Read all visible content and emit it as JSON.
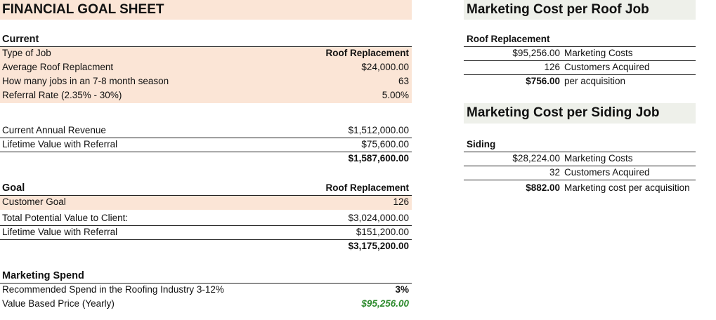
{
  "left": {
    "title": "FINANCIAL GOAL SHEET",
    "current": {
      "heading": "Current",
      "rows": [
        {
          "label": "Type of Job",
          "value": "Roof Replacement"
        },
        {
          "label": "Average Roof Replacment",
          "value": "$24,000.00"
        },
        {
          "label": "How many jobs in an 7-8 month season",
          "value": "63"
        },
        {
          "label": "Referral Rate (2.35% - 30%)",
          "value": "5.00%"
        }
      ]
    },
    "revenue": {
      "rows": [
        {
          "label": "Current Annual Revenue",
          "value": "$1,512,000.00"
        },
        {
          "label": "Lifetime Value with Referral",
          "value": "$75,600.00"
        }
      ],
      "total": "$1,587,600.00"
    },
    "goal": {
      "heading": "Goal",
      "heading_value": "Roof Replacement",
      "customer_goal_label": "Customer Goal",
      "customer_goal_value": "126",
      "rows": [
        {
          "label": "Total Potential Value to Client:",
          "value": "$3,024,000.00"
        },
        {
          "label": "Lifetime Value with Referral",
          "value": "$151,200.00"
        }
      ],
      "total": "$3,175,200.00"
    },
    "marketing": {
      "heading": "Marketing Spend",
      "rows": [
        {
          "label": "Recommended Spend in the Roofing Industry 3-12%",
          "value": "3%"
        },
        {
          "label": "Value Based Price (Yearly)",
          "value": "$95,256.00"
        }
      ]
    }
  },
  "right": {
    "roof": {
      "title": "Marketing Cost per Roof Job",
      "subheading": "Roof Replacement",
      "rows": [
        {
          "value": "$95,256.00",
          "label": "Marketing Costs"
        },
        {
          "value": "126",
          "label": "Customers Acquired"
        },
        {
          "value": "$756.00",
          "label": "per acquisition"
        }
      ]
    },
    "siding": {
      "title": "Marketing Cost per Siding Job",
      "subheading": "Siding",
      "rows": [
        {
          "value": "$28,224.00",
          "label": "Marketing Costs"
        },
        {
          "value": "32",
          "label": "Customers Acquired"
        },
        {
          "value": "$882.00",
          "label": "Marketing cost per acquisition"
        }
      ]
    }
  },
  "colors": {
    "peach": "#fbe5d6",
    "header_gray": "#eef0ea",
    "green": "#2e8b2e"
  }
}
